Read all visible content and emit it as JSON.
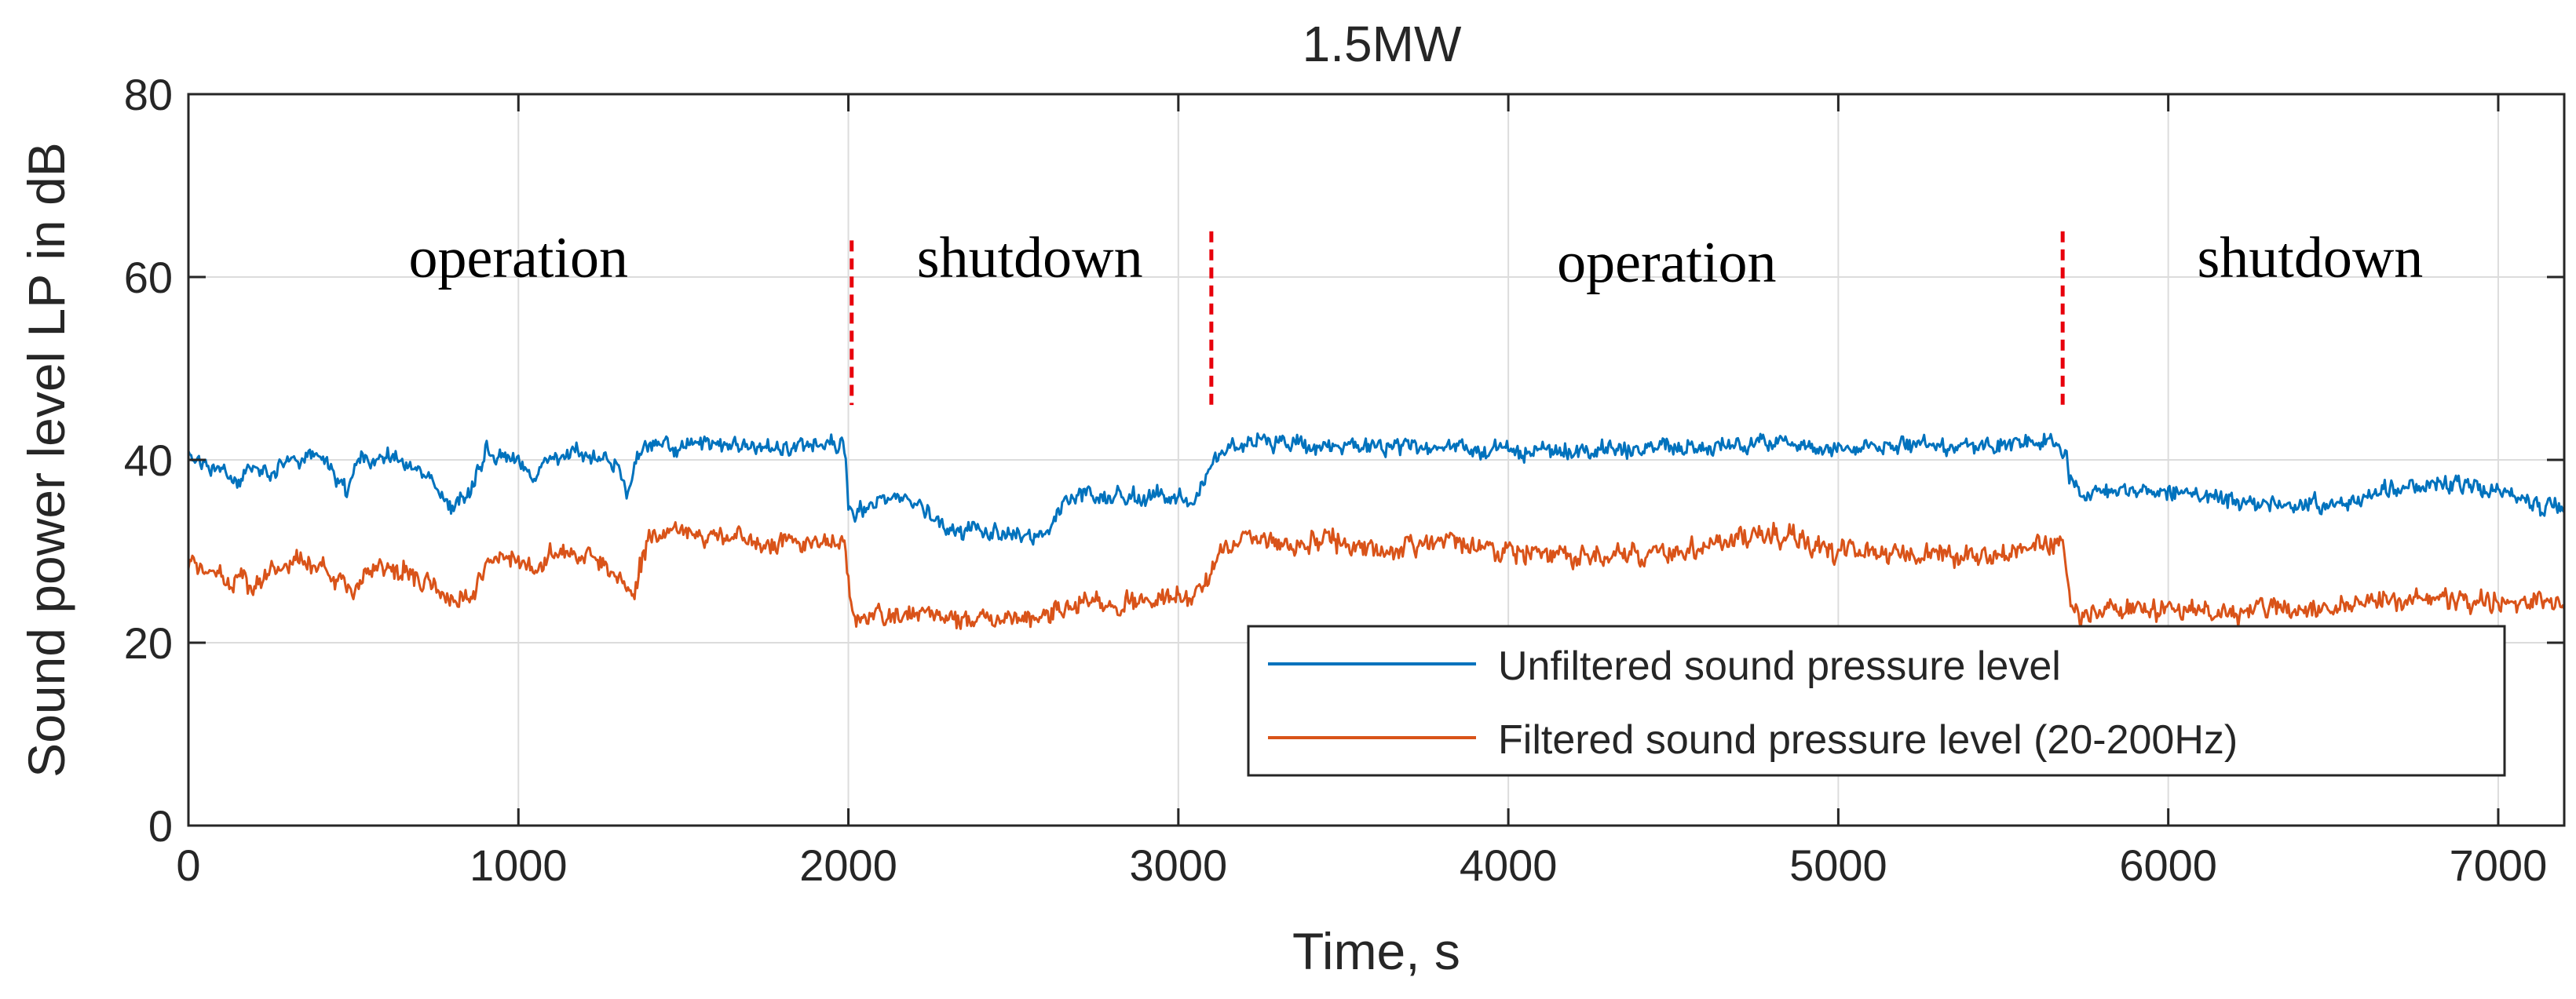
{
  "chart_data": {
    "type": "line",
    "title": "1.5MW",
    "xlabel": "Time, s",
    "ylabel": "Sound power level LP in dB",
    "xlim": [
      0,
      7200
    ],
    "ylim": [
      0,
      80
    ],
    "xticks": [
      0,
      1000,
      2000,
      3000,
      4000,
      5000,
      6000,
      7000
    ],
    "yticks": [
      0,
      20,
      40,
      60,
      80
    ],
    "grid": true,
    "legend_position": "bottom-right",
    "series": [
      {
        "name": "Unfiltered sound pressure level",
        "color": "#0072BD",
        "noise": 1.3,
        "x": [
          0,
          100,
          150,
          200,
          250,
          300,
          400,
          450,
          480,
          500,
          520,
          600,
          700,
          800,
          850,
          900,
          950,
          1000,
          1050,
          1100,
          1150,
          1200,
          1300,
          1330,
          1360,
          1400,
          1500,
          1700,
          1900,
          1990,
          2000,
          2020,
          2100,
          2200,
          2300,
          2400,
          2500,
          2600,
          2650,
          2700,
          2900,
          3050,
          3100,
          3150,
          3200,
          3400,
          3600,
          3800,
          4000,
          4300,
          4600,
          4800,
          5000,
          5200,
          5400,
          5500,
          5600,
          5650,
          5690,
          5700,
          5750,
          5800,
          6000,
          6200,
          6400,
          6600,
          6800,
          6900,
          7000,
          7100,
          7200
        ],
        "y": [
          40.5,
          38.5,
          37.5,
          39.5,
          38,
          40,
          40.5,
          38,
          36.5,
          39,
          40,
          40.5,
          39,
          35,
          36,
          41,
          40.5,
          40,
          37.5,
          40.5,
          41,
          40.5,
          39.5,
          36.5,
          40.5,
          41.5,
          41.5,
          41.5,
          41.5,
          41.5,
          35.5,
          34,
          36,
          35.5,
          32.5,
          32,
          31.5,
          31.5,
          35,
          36,
          36,
          36,
          39,
          41.5,
          42,
          41.5,
          41.5,
          41.5,
          41,
          41,
          41.5,
          42,
          41.5,
          41.5,
          41.5,
          41.5,
          42,
          42.5,
          41,
          38,
          36.5,
          37,
          36.5,
          35.5,
          35,
          36,
          37.5,
          37,
          36.5,
          35,
          34.5
        ]
      },
      {
        "name": "Filtered sound pressure level (20-200Hz)",
        "color": "#D95319",
        "noise": 1.6,
        "x": [
          0,
          100,
          200,
          300,
          400,
          450,
          500,
          550,
          600,
          700,
          800,
          850,
          900,
          1000,
          1050,
          1100,
          1200,
          1300,
          1350,
          1400,
          1500,
          1600,
          1700,
          1800,
          1900,
          1990,
          2010,
          2100,
          2200,
          2300,
          2400,
          2500,
          2600,
          2700,
          2800,
          2900,
          3050,
          3100,
          3150,
          3200,
          3300,
          3400,
          3500,
          3600,
          3700,
          3800,
          3900,
          4000,
          4200,
          4400,
          4600,
          4800,
          4900,
          5000,
          5200,
          5400,
          5500,
          5600,
          5650,
          5680,
          5700,
          5750,
          6000,
          6200,
          6400,
          6600,
          6800,
          7000,
          7200
        ],
        "y": [
          29,
          27,
          26.5,
          28.5,
          28.5,
          27,
          25.5,
          28,
          28.5,
          27.5,
          24,
          24.5,
          29,
          29.5,
          27.5,
          30,
          29.5,
          28,
          25.5,
          32,
          32.5,
          31.5,
          31,
          30.5,
          31,
          31,
          23,
          23,
          23,
          23,
          22.5,
          22.5,
          23.5,
          24,
          24.5,
          24.5,
          25,
          27.5,
          30.5,
          31.5,
          31,
          31,
          31,
          30,
          30.5,
          31,
          31,
          30,
          29.5,
          29.5,
          30.5,
          32,
          31,
          30,
          29.5,
          29.5,
          29.5,
          30.5,
          31,
          31.5,
          24,
          23.5,
          23.5,
          23.5,
          23.5,
          24.5,
          24.5,
          24.5,
          24
        ]
      }
    ],
    "annotations": [
      {
        "text": "operation",
        "x": 1000,
        "y": 60
      },
      {
        "text": "shutdown",
        "x": 2550,
        "y": 60
      },
      {
        "text": "operation",
        "x": 4480,
        "y": 59.5
      },
      {
        "text": "shutdown",
        "x": 6430,
        "y": 60
      }
    ],
    "dividers": [
      {
        "x": 2010,
        "y_from": 46,
        "y_to": 64
      },
      {
        "x": 3100,
        "y_from": 46,
        "y_to": 65
      },
      {
        "x": 5680,
        "y_from": 46,
        "y_to": 65
      }
    ],
    "divider_color": "#E8000B"
  }
}
